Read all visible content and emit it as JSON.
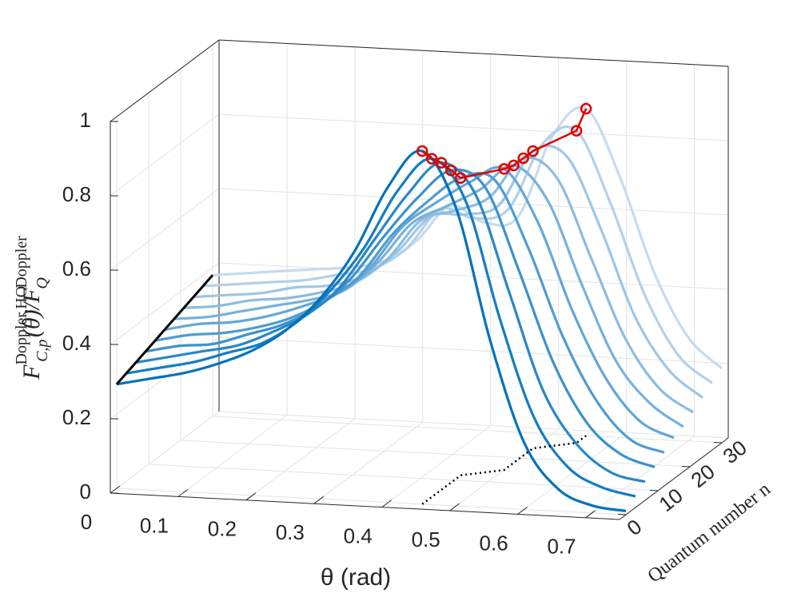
{
  "chart_data": {
    "type": "line3d",
    "xlabel": "θ (rad)",
    "ylabel": "Quantum number n",
    "zlabel": [
      {
        "text": "F",
        "sub": "C,p",
        "sup": "Doppler,HO"
      },
      {
        "text": "(θ)/F",
        "sub": "Q",
        "sup": "Doppler"
      }
    ],
    "xlim": [
      0,
      0.75
    ],
    "ylim": [
      -2,
      32
    ],
    "zlim": [
      0,
      1
    ],
    "xticks": [
      0,
      0.1,
      0.2,
      0.3,
      0.4,
      0.5,
      0.6,
      0.7
    ],
    "yticks": [
      0,
      10,
      20,
      30
    ],
    "zticks": [
      0,
      0.2,
      0.4,
      0.6,
      0.8,
      1
    ],
    "grid": true,
    "peak_color": "#e00000",
    "x": [
      0,
      0.05,
      0.1,
      0.15,
      0.2,
      0.25,
      0.3,
      0.35,
      0.4,
      0.45,
      0.5,
      0.55,
      0.6,
      0.65,
      0.7,
      0.75
    ],
    "series": [
      {
        "n": 0,
        "color": "#0072bd",
        "values": [
          0.28,
          0.3,
          0.32,
          0.35,
          0.39,
          0.45,
          0.54,
          0.67,
          0.85,
          0.95,
          0.8,
          0.45,
          0.18,
          0.06,
          0.02,
          0.01
        ]
      },
      {
        "n": 3,
        "color": "#147dc2",
        "values": [
          0.29,
          0.31,
          0.33,
          0.36,
          0.39,
          0.45,
          0.54,
          0.66,
          0.82,
          0.91,
          0.8,
          0.49,
          0.23,
          0.1,
          0.05,
          0.03
        ]
      },
      {
        "n": 6,
        "color": "#2887c7",
        "values": [
          0.3,
          0.32,
          0.34,
          0.36,
          0.4,
          0.45,
          0.53,
          0.66,
          0.79,
          0.88,
          0.8,
          0.54,
          0.28,
          0.14,
          0.07,
          0.05
        ]
      },
      {
        "n": 9,
        "color": "#3b92cc",
        "values": [
          0.31,
          0.33,
          0.34,
          0.37,
          0.4,
          0.45,
          0.53,
          0.65,
          0.76,
          0.84,
          0.8,
          0.58,
          0.34,
          0.18,
          0.1,
          0.07
        ]
      },
      {
        "n": 12,
        "color": "#4f9cd1",
        "values": [
          0.32,
          0.34,
          0.35,
          0.37,
          0.4,
          0.45,
          0.52,
          0.64,
          0.73,
          0.8,
          0.8,
          0.62,
          0.39,
          0.22,
          0.12,
          0.09
        ]
      },
      {
        "n": 15,
        "color": "#63a7d6",
        "values": [
          0.33,
          0.35,
          0.36,
          0.38,
          0.41,
          0.45,
          0.52,
          0.64,
          0.71,
          0.77,
          0.81,
          0.67,
          0.44,
          0.26,
          0.15,
          0.11
        ]
      },
      {
        "n": 18,
        "color": "#77b1db",
        "values": [
          0.34,
          0.35,
          0.37,
          0.39,
          0.41,
          0.44,
          0.52,
          0.63,
          0.68,
          0.73,
          0.8,
          0.71,
          0.49,
          0.29,
          0.18,
          0.12
        ]
      },
      {
        "n": 21,
        "color": "#8bbce0",
        "values": [
          0.35,
          0.36,
          0.38,
          0.39,
          0.41,
          0.44,
          0.51,
          0.62,
          0.65,
          0.69,
          0.8,
          0.75,
          0.54,
          0.33,
          0.2,
          0.14
        ]
      },
      {
        "n": 24,
        "color": "#9ec6e5",
        "values": [
          0.36,
          0.37,
          0.38,
          0.4,
          0.41,
          0.44,
          0.51,
          0.61,
          0.62,
          0.65,
          0.8,
          0.79,
          0.6,
          0.37,
          0.23,
          0.16
        ]
      },
      {
        "n": 27,
        "color": "#b2d1ea",
        "values": [
          0.37,
          0.38,
          0.39,
          0.4,
          0.42,
          0.44,
          0.5,
          0.61,
          0.59,
          0.62,
          0.8,
          0.84,
          0.65,
          0.41,
          0.25,
          0.18
        ]
      },
      {
        "n": 30,
        "color": "#c6dbef",
        "values": [
          0.38,
          0.39,
          0.4,
          0.41,
          0.42,
          0.44,
          0.5,
          0.6,
          0.56,
          0.58,
          0.8,
          0.88,
          0.7,
          0.45,
          0.28,
          0.2
        ]
      }
    ]
  }
}
